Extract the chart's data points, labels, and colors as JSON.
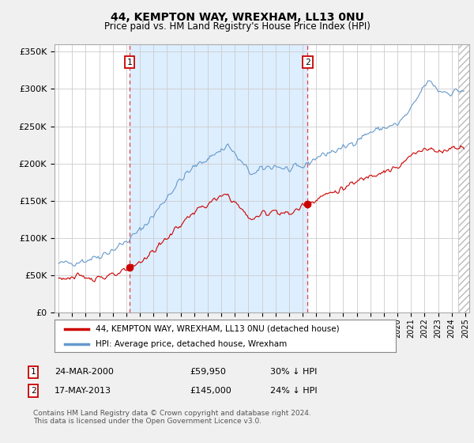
{
  "title": "44, KEMPTON WAY, WREXHAM, LL13 0NU",
  "subtitle": "Price paid vs. HM Land Registry's House Price Index (HPI)",
  "ylabel_ticks": [
    "£0",
    "£50K",
    "£100K",
    "£150K",
    "£200K",
    "£250K",
    "£300K",
    "£350K"
  ],
  "ytick_vals": [
    0,
    50000,
    100000,
    150000,
    200000,
    250000,
    300000,
    350000
  ],
  "ylim": [
    0,
    360000
  ],
  "background_color": "#f0f0f0",
  "plot_bg_color": "#ffffff",
  "grid_color": "#cccccc",
  "red_line_color": "#cc0000",
  "blue_line_color": "#6699cc",
  "shade_between_color": "#ddeeff",
  "marker1_x": 2000.22,
  "marker2_x": 2013.38,
  "marker1_price": 59950,
  "marker2_price": 145000,
  "legend_label_red": "44, KEMPTON WAY, WREXHAM, LL13 0NU (detached house)",
  "legend_label_blue": "HPI: Average price, detached house, Wrexham",
  "table_row1": [
    "1",
    "24-MAR-2000",
    "£59,950",
    "30% ↓ HPI"
  ],
  "table_row2": [
    "2",
    "17-MAY-2013",
    "£145,000",
    "24% ↓ HPI"
  ],
  "footer": "Contains HM Land Registry data © Crown copyright and database right 2024.\nThis data is licensed under the Open Government Licence v3.0.",
  "xlim_left": 1994.7,
  "xlim_right": 2025.3,
  "hatch_start": 2024.5,
  "noise_seed": 42
}
